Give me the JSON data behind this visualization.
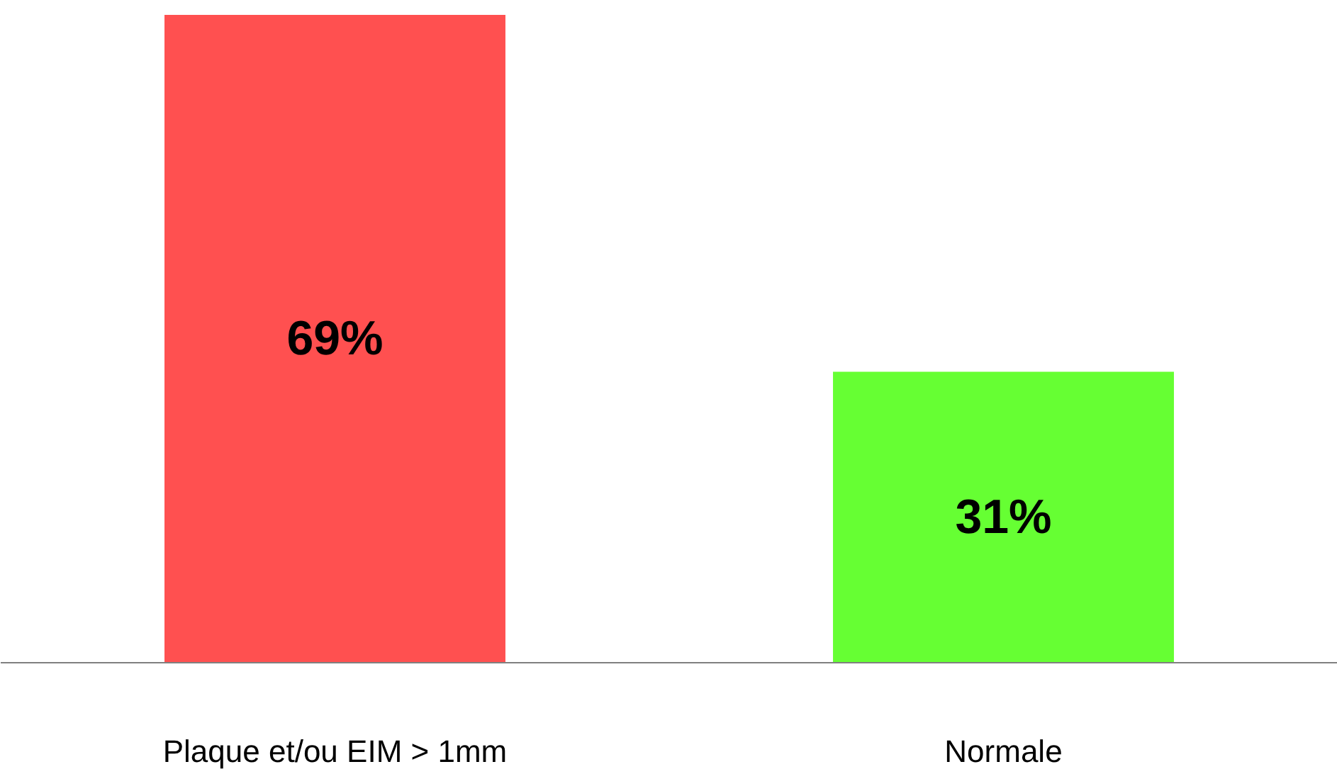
{
  "chart_data": {
    "type": "bar",
    "categories": [
      "Plaque et/ou EIM > 1mm",
      "Normale"
    ],
    "values": [
      69,
      31
    ],
    "colors": [
      "#ff5050",
      "#66ff33"
    ],
    "value_labels": [
      "69%",
      "31%"
    ],
    "grid": false
  }
}
